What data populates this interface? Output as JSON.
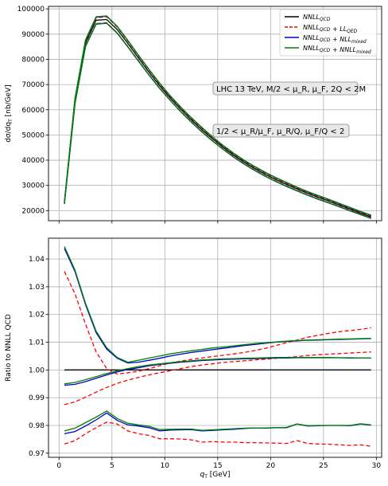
{
  "chart_data": [
    {
      "type": "line",
      "title": "",
      "xlabel": "",
      "ylabel": "dσ/dq_T [nb/GeV]",
      "xlim": [
        -1,
        30.5
      ],
      "ylim": [
        16000,
        101000
      ],
      "xticks": [
        0,
        5,
        10,
        15,
        20,
        25,
        30
      ],
      "xticklabels": [
        "",
        "",
        "",
        "",
        "",
        "",
        ""
      ],
      "yticks": [
        20000,
        30000,
        40000,
        50000,
        60000,
        70000,
        80000,
        90000,
        100000
      ],
      "yticklabels": [
        "20000",
        "30000",
        "40000",
        "50000",
        "60000",
        "70000",
        "80000",
        "90000",
        "100000"
      ],
      "grid": true,
      "legend_position": "top-right",
      "legend": [
        {
          "label": "NNLL_QCD",
          "color": "#000000",
          "style": "solid"
        },
        {
          "label": "NNLL_QCD + LL_QED",
          "color": "#ff0000",
          "style": "dashed"
        },
        {
          "label": "NNLL_QCD + NLL_mixed",
          "color": "#0000cc",
          "style": "solid"
        },
        {
          "label": "NNLL_QCD + NNLL_mixed",
          "color": "#008000",
          "style": "solid"
        }
      ],
      "annotations": [
        "LHC 13 TeV, M/2 < μ_R, μ_F, 2Q < 2M",
        "1/2 < μ_R/μ_F, μ_R/Q, μ_F/Q < 2"
      ],
      "x": [
        0.5,
        1.5,
        2.5,
        3.5,
        4.5,
        5.5,
        6.5,
        7.5,
        8.5,
        9.5,
        10.5,
        11.5,
        12.5,
        13.5,
        14.5,
        15.5,
        16.5,
        17.5,
        18.5,
        19.5,
        20.5,
        21.5,
        22.5,
        23.5,
        24.5,
        25.5,
        26.5,
        27.5,
        28.5,
        29.5
      ],
      "series": [
        {
          "name": "NNLL_QCD",
          "color": "#000000",
          "style": "solid",
          "values": [
            23100,
            63500,
            86500,
            95500,
            95800,
            91800,
            86300,
            80600,
            74900,
            69600,
            64700,
            60200,
            56000,
            52100,
            48500,
            45100,
            42000,
            39200,
            36700,
            34400,
            32300,
            30400,
            28600,
            26900,
            25300,
            23800,
            22200,
            20600,
            19000,
            17500
          ]
        },
        {
          "name": "NNLL_QCD + LL_QED (upper)",
          "color": "#ff0000",
          "style": "dashed",
          "values": [
            23300,
            64200,
            87500,
            96500,
            96900,
            92800,
            87200,
            81400,
            75700,
            70300,
            65300,
            60800,
            56600,
            52700,
            49000,
            45600,
            42500,
            39700,
            37200,
            34900,
            32800,
            30900,
            29000,
            27300,
            25700,
            24200,
            22600,
            21000,
            19400,
            17900
          ]
        },
        {
          "name": "NNLL_QCD + LL_QED (lower)",
          "color": "#ff0000",
          "style": "dashed",
          "values": [
            22800,
            62700,
            85500,
            94200,
            94500,
            90500,
            85100,
            79500,
            73900,
            68700,
            63900,
            59400,
            55300,
            51400,
            47800,
            44500,
            41400,
            38600,
            36100,
            33800,
            31700,
            29800,
            28000,
            26300,
            24700,
            23200,
            21700,
            20100,
            18600,
            17100
          ]
        },
        {
          "name": "NNLL_QCD + NLL_mixed (upper)",
          "color": "#0000cc",
          "style": "solid",
          "values": [
            23400,
            64300,
            87600,
            96700,
            97100,
            93000,
            87400,
            81600,
            75900,
            70500,
            65500,
            61000,
            56800,
            52900,
            49200,
            45800,
            42700,
            39900,
            37400,
            35100,
            33000,
            31100,
            29200,
            27500,
            25900,
            24400,
            22800,
            21200,
            19600,
            18100
          ]
        },
        {
          "name": "NNLL_QCD + NLL_mixed (lower)",
          "color": "#0000cc",
          "style": "solid",
          "values": [
            22600,
            62400,
            85100,
            94000,
            94300,
            90300,
            84900,
            79300,
            73700,
            68500,
            63700,
            59200,
            55100,
            51200,
            47600,
            44300,
            41200,
            38400,
            35900,
            33600,
            31500,
            29600,
            27800,
            26100,
            24500,
            23000,
            21500,
            19900,
            18400,
            16900
          ]
        },
        {
          "name": "NNLL_QCD + NNLL_mixed (upper)",
          "color": "#008000",
          "style": "solid",
          "values": [
            23500,
            64500,
            87800,
            96900,
            97200,
            93100,
            87500,
            81700,
            76000,
            70600,
            65600,
            61100,
            56900,
            53000,
            49300,
            45900,
            42800,
            40000,
            37500,
            35200,
            33100,
            31200,
            29300,
            27600,
            26000,
            24500,
            22900,
            21300,
            19700,
            18200
          ]
        },
        {
          "name": "NNLL_QCD + NNLL_mixed (lower)",
          "color": "#008000",
          "style": "solid",
          "values": [
            22700,
            62500,
            85200,
            94100,
            94400,
            90400,
            85000,
            79400,
            73800,
            68600,
            63800,
            59300,
            55200,
            51300,
            47700,
            44400,
            41300,
            38500,
            36000,
            33700,
            31600,
            29700,
            27900,
            26200,
            24600,
            23100,
            21600,
            20000,
            18500,
            17000
          ]
        }
      ]
    },
    {
      "type": "line",
      "title": "",
      "xlabel": "q_T [GeV]",
      "ylabel": "Ratio to NNLL QCD",
      "xlim": [
        -1,
        30.5
      ],
      "ylim": [
        0.9685,
        1.0475
      ],
      "xticks": [
        0,
        5,
        10,
        15,
        20,
        25,
        30
      ],
      "xticklabels": [
        "0",
        "5",
        "10",
        "15",
        "20",
        "25",
        "30"
      ],
      "yticks": [
        0.97,
        0.98,
        0.99,
        1.0,
        1.01,
        1.02,
        1.03,
        1.04
      ],
      "yticklabels": [
        "0.97",
        "0.98",
        "0.99",
        "1.00",
        "1.01",
        "1.02",
        "1.03",
        "1.04"
      ],
      "grid": true,
      "x": [
        0.5,
        1.5,
        2.5,
        3.5,
        4.5,
        5.5,
        6.5,
        7.5,
        8.5,
        9.5,
        10.5,
        11.5,
        12.5,
        13.5,
        14.5,
        15.5,
        16.5,
        17.5,
        18.5,
        19.5,
        20.5,
        21.5,
        22.5,
        23.5,
        24.5,
        25.5,
        26.5,
        27.5,
        28.5,
        29.5
      ],
      "series": [
        {
          "name": "NNLL_QCD",
          "color": "#000000",
          "style": "solid",
          "values": [
            1.0,
            1.0,
            1.0,
            1.0,
            1.0,
            1.0,
            1.0,
            1.0,
            1.0,
            1.0,
            1.0,
            1.0,
            1.0,
            1.0,
            1.0,
            1.0,
            1.0,
            1.0,
            1.0,
            1.0,
            1.0,
            1.0,
            1.0,
            1.0,
            1.0,
            1.0,
            1.0,
            1.0,
            1.0,
            1.0
          ]
        },
        {
          "name": "NNLL_QCD + LL_QED (upper)",
          "color": "#ff0000",
          "style": "dashed",
          "values": [
            1.0355,
            1.0275,
            1.0165,
            1.0065,
            1.0005,
            0.9985,
            0.999,
            0.9995,
            1.0005,
            1.0015,
            1.0025,
            1.0032,
            1.0038,
            1.0043,
            1.0048,
            1.0053,
            1.0058,
            1.0063,
            1.007,
            1.0078,
            1.0088,
            1.0098,
            1.0108,
            1.0118,
            1.0125,
            1.0132,
            1.0138,
            1.0142,
            1.0146,
            1.0152
          ]
        },
        {
          "name": "NNLL_QCD + LL_QED (lower)",
          "color": "#ff0000",
          "style": "dashed",
          "values": [
            0.9875,
            0.9885,
            0.9902,
            0.992,
            0.9937,
            0.9952,
            0.9963,
            0.9973,
            0.9982,
            0.999,
            0.9997,
            1.0005,
            1.0012,
            1.0018,
            1.0022,
            1.0027,
            1.003,
            1.0033,
            1.0036,
            1.0039,
            1.0042,
            1.0045,
            1.0048,
            1.0052,
            1.0055,
            1.0057,
            1.0059,
            1.0061,
            1.0063,
            1.0065
          ]
        },
        {
          "name": "NNLL_QCD + NLL_mixed (upper)",
          "color": "#0000cc",
          "style": "solid",
          "values": [
            1.0438,
            1.0355,
            1.0235,
            1.0135,
            1.0075,
            1.0042,
            1.0025,
            1.0028,
            1.0035,
            1.0042,
            1.005,
            1.0057,
            1.0063,
            1.0068,
            1.0073,
            1.0078,
            1.0083,
            1.0088,
            1.0092,
            1.0096,
            1.01,
            1.0103,
            1.0105,
            1.0107,
            1.0108,
            1.0109,
            1.011,
            1.0111,
            1.0112,
            1.0113
          ]
        },
        {
          "name": "NNLL_QCD + NLL_mixed (lower)",
          "color": "#0000cc",
          "style": "solid",
          "values": [
            0.9945,
            0.9948,
            0.9958,
            0.997,
            0.9982,
            0.9993,
            1.0002,
            1.0008,
            1.0015,
            1.002,
            1.0024,
            1.0028,
            1.0031,
            1.0034,
            1.0036,
            1.0038,
            1.0039,
            1.004,
            1.0041,
            1.0042,
            1.0043,
            1.0043,
            1.0044,
            1.0044,
            1.0044,
            1.0044,
            1.0044,
            1.0043,
            1.0043,
            1.0043
          ]
        },
        {
          "name": "NNLL_QCD + NLL_mixed (lowest)",
          "color": "#0000cc",
          "style": "solid",
          "values": [
            0.977,
            0.9778,
            0.9798,
            0.982,
            0.9845,
            0.9818,
            0.9802,
            0.9798,
            0.9792,
            0.978,
            0.9783,
            0.9784,
            0.9785,
            0.978,
            0.9782,
            0.9784,
            0.9786,
            0.9789,
            0.9791,
            0.979,
            0.9792,
            0.9792,
            0.9805,
            0.9798,
            0.9799,
            0.98,
            0.98,
            0.9799,
            0.9805,
            0.9801
          ]
        },
        {
          "name": "NNLL_QCD + NNLL_mixed (upper)",
          "color": "#008000",
          "style": "solid",
          "values": [
            1.0445,
            1.036,
            1.024,
            1.014,
            1.008,
            1.0045,
            1.0028,
            1.0035,
            1.0043,
            1.005,
            1.0058,
            1.0064,
            1.0069,
            1.0074,
            1.0079,
            1.0083,
            1.0087,
            1.0091,
            1.0095,
            1.0098,
            1.0101,
            1.0104,
            1.0106,
            1.0108,
            1.0109,
            1.011,
            1.0111,
            1.0112,
            1.0113,
            1.0114
          ]
        },
        {
          "name": "NNLL_QCD + NNLL_mixed (lower)",
          "color": "#008000",
          "style": "solid",
          "values": [
            0.995,
            0.9955,
            0.9965,
            0.9976,
            0.9987,
            0.9997,
            1.0005,
            1.0012,
            1.0018,
            1.0022,
            1.0026,
            1.003,
            1.0033,
            1.0036,
            1.0038,
            1.004,
            1.0041,
            1.0042,
            1.0043,
            1.0044,
            1.0045,
            1.0045,
            1.0045,
            1.0045,
            1.0045,
            1.0045,
            1.0044,
            1.0044,
            1.0043,
            1.0043
          ]
        },
        {
          "name": "NNLL_QCD + NNLL_mixed (lowest)",
          "color": "#008000",
          "style": "solid",
          "values": [
            0.978,
            0.979,
            0.981,
            0.983,
            0.9852,
            0.9825,
            0.9808,
            0.9802,
            0.9797,
            0.9785,
            0.9786,
            0.9787,
            0.9787,
            0.9782,
            0.9784,
            0.9786,
            0.9788,
            0.979,
            0.9791,
            0.9791,
            0.9792,
            0.9793,
            0.9805,
            0.9799,
            0.98,
            0.98,
            0.98,
            0.98,
            0.9806,
            0.9802
          ]
        },
        {
          "name": "NNLL_QCD + LL_QED (lowest)",
          "color": "#ff0000",
          "style": "dashed",
          "values": [
            0.9733,
            0.9745,
            0.977,
            0.9792,
            0.9812,
            0.9805,
            0.978,
            0.977,
            0.9764,
            0.9752,
            0.9752,
            0.9751,
            0.9748,
            0.974,
            0.9742,
            0.974,
            0.974,
            0.9738,
            0.9738,
            0.9737,
            0.9736,
            0.9735,
            0.9745,
            0.9735,
            0.9733,
            0.9732,
            0.973,
            0.9728,
            0.973,
            0.9725
          ]
        }
      ]
    }
  ]
}
